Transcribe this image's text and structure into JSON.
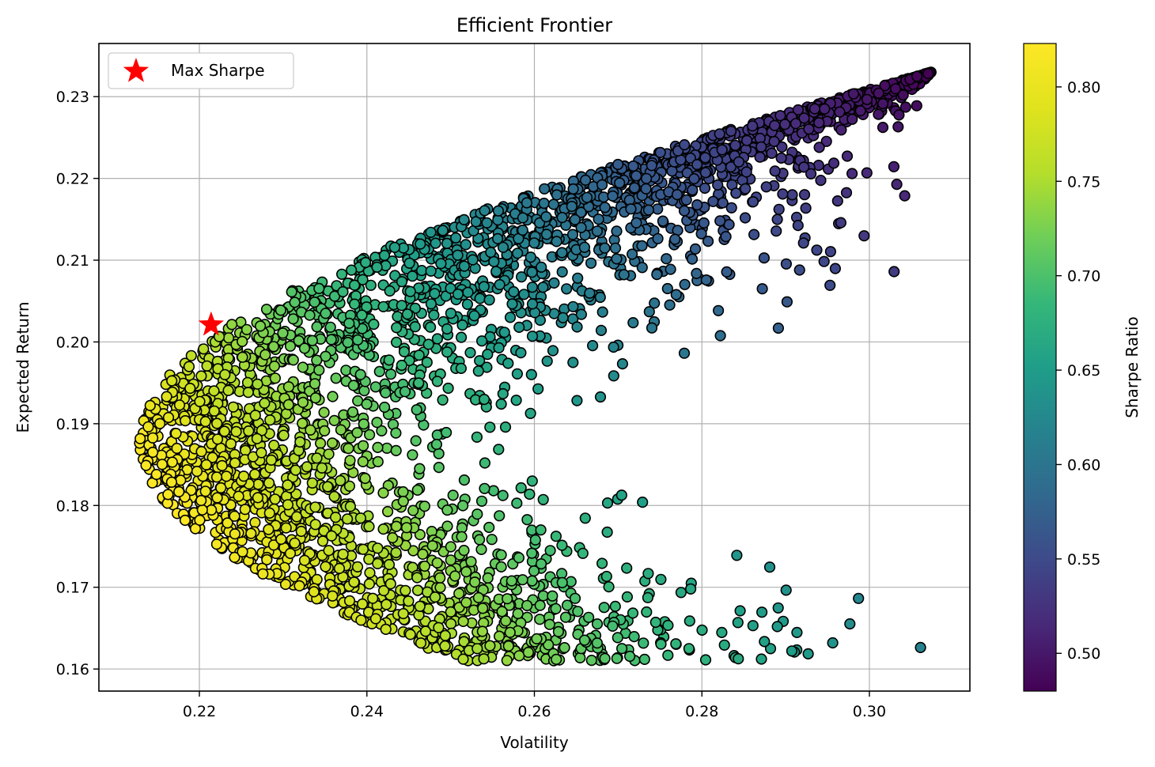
{
  "chart_data": {
    "type": "scatter",
    "title": "Efficient Frontier",
    "xlabel": "Volatility",
    "ylabel": "Expected Return",
    "xlim": [
      0.208,
      0.312
    ],
    "ylim": [
      0.1573,
      0.2365
    ],
    "x_ticks": [
      0.22,
      0.24,
      0.26,
      0.28,
      0.3
    ],
    "x_tick_labels": [
      "0.22",
      "0.24",
      "0.26",
      "0.28",
      "0.30"
    ],
    "y_ticks": [
      0.16,
      0.17,
      0.18,
      0.19,
      0.2,
      0.21,
      0.22,
      0.23
    ],
    "y_tick_labels": [
      "0.16",
      "0.17",
      "0.18",
      "0.19",
      "0.20",
      "0.21",
      "0.22",
      "0.23"
    ],
    "grid": true,
    "legend": {
      "placement": "top-left",
      "entries": [
        {
          "label": "Max Sharpe",
          "marker": "star",
          "color": "#ff0000"
        }
      ]
    },
    "colorbar": {
      "label": "Sharpe Ratio",
      "colormap": "viridis",
      "range": [
        0.48,
        0.823
      ],
      "ticks": [
        0.5,
        0.55,
        0.6,
        0.65,
        0.7,
        0.75,
        0.8
      ],
      "tick_labels": [
        "0.50",
        "0.55",
        "0.60",
        "0.65",
        "0.70",
        "0.75",
        "0.80"
      ]
    },
    "max_sharpe": {
      "volatility": 0.2214,
      "return": 0.2021
    },
    "portfolios": {
      "count": 3000,
      "volatility_range": [
        0.2125,
        0.3072
      ],
      "return_range": [
        0.161,
        0.233
      ],
      "min_volatility_return": 0.188,
      "sharpe_range": [
        0.48,
        0.823
      ]
    }
  }
}
